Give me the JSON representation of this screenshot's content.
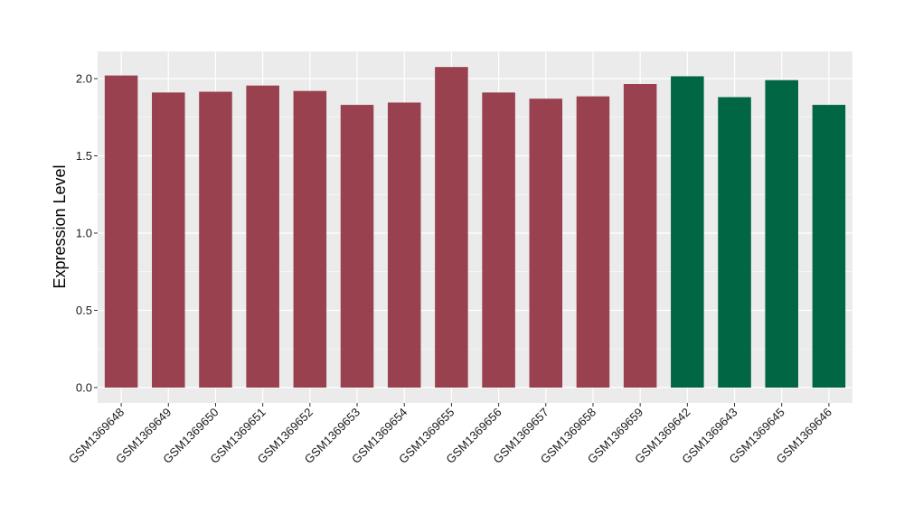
{
  "chart_data": {
    "type": "bar",
    "title": "",
    "xlabel": "",
    "ylabel": "Expression Level",
    "ylim": [
      0,
      2.15
    ],
    "yticks": [
      0.0,
      0.5,
      1.0,
      1.5,
      2.0
    ],
    "ytick_labels": [
      "0.0",
      "0.5",
      "1.0",
      "1.5",
      "2.0"
    ],
    "grid": true,
    "legend": "none",
    "categories": [
      "GSM1369648",
      "GSM1369649",
      "GSM1369650",
      "GSM1369651",
      "GSM1369652",
      "GSM1369653",
      "GSM1369654",
      "GSM1369655",
      "GSM1369656",
      "GSM1369657",
      "GSM1369658",
      "GSM1369659",
      "GSM1369642",
      "GSM1369643",
      "GSM1369645",
      "GSM1369646"
    ],
    "values": [
      2.02,
      1.91,
      1.915,
      1.955,
      1.92,
      1.83,
      1.845,
      2.075,
      1.91,
      1.87,
      1.885,
      1.965,
      2.015,
      1.88,
      1.99,
      1.83
    ],
    "groups": [
      "a",
      "a",
      "a",
      "a",
      "a",
      "a",
      "a",
      "a",
      "a",
      "a",
      "a",
      "a",
      "b",
      "b",
      "b",
      "b"
    ],
    "colors": {
      "a": "#99414F",
      "b": "#006644"
    },
    "panel_background": "#EBEBEB",
    "grid_color": "#FFFFFF"
  }
}
